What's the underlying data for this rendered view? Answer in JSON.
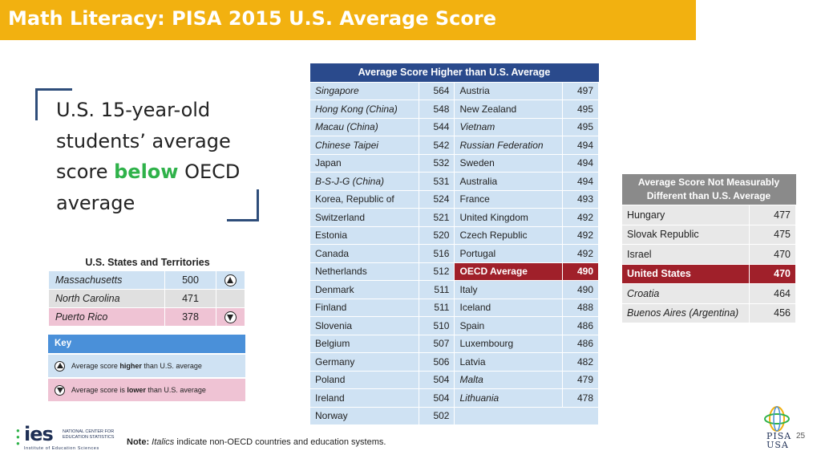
{
  "title": "Math Literacy: PISA 2015 U.S. Average Score",
  "intro": {
    "line1": "U.S. 15-year-old",
    "line2": "students’ average",
    "line3a": "score ",
    "line3b": "below",
    "line3c": " OECD",
    "line4": "average"
  },
  "higher_table": {
    "header": "Average Score Higher than U.S. Average",
    "left": [
      {
        "name": "Singapore",
        "score": "564",
        "italic": true
      },
      {
        "name": "Hong Kong (China)",
        "score": "548",
        "italic": true
      },
      {
        "name": "Macau (China)",
        "score": "544",
        "italic": true
      },
      {
        "name": "Chinese Taipei",
        "score": "542",
        "italic": true
      },
      {
        "name": "Japan",
        "score": "532",
        "italic": false
      },
      {
        "name": "B-S-J-G (China)",
        "score": "531",
        "italic": true
      },
      {
        "name": "Korea, Republic of",
        "score": "524",
        "italic": false
      },
      {
        "name": "Switzerland",
        "score": "521",
        "italic": false
      },
      {
        "name": "Estonia",
        "score": "520",
        "italic": false
      },
      {
        "name": "Canada",
        "score": "516",
        "italic": false
      },
      {
        "name": "Netherlands",
        "score": "512",
        "italic": false
      },
      {
        "name": "Denmark",
        "score": "511",
        "italic": false
      },
      {
        "name": "Finland",
        "score": "511",
        "italic": false
      },
      {
        "name": "Slovenia",
        "score": "510",
        "italic": false
      },
      {
        "name": "Belgium",
        "score": "507",
        "italic": false
      },
      {
        "name": "Germany",
        "score": "506",
        "italic": false
      },
      {
        "name": "Poland",
        "score": "504",
        "italic": false
      },
      {
        "name": "Ireland",
        "score": "504",
        "italic": false
      },
      {
        "name": "Norway",
        "score": "502",
        "italic": false
      }
    ],
    "right": [
      {
        "name": "Austria",
        "score": "497",
        "italic": false
      },
      {
        "name": "New Zealand",
        "score": "495",
        "italic": false
      },
      {
        "name": "Vietnam",
        "score": "495",
        "italic": true
      },
      {
        "name": "Russian Federation",
        "score": "494",
        "italic": true
      },
      {
        "name": "Sweden",
        "score": "494",
        "italic": false
      },
      {
        "name": "Australia",
        "score": "494",
        "italic": false
      },
      {
        "name": "France",
        "score": "493",
        "italic": false
      },
      {
        "name": "United Kingdom",
        "score": "492",
        "italic": false
      },
      {
        "name": "Czech Republic",
        "score": "492",
        "italic": false
      },
      {
        "name": "Portugal",
        "score": "492",
        "italic": false
      },
      {
        "name": "OECD Average",
        "score": "490",
        "italic": false,
        "highlight": true
      },
      {
        "name": "Italy",
        "score": "490",
        "italic": false
      },
      {
        "name": "Iceland",
        "score": "488",
        "italic": false
      },
      {
        "name": "Spain",
        "score": "486",
        "italic": false
      },
      {
        "name": "Luxembourg",
        "score": "486",
        "italic": false
      },
      {
        "name": "Latvia",
        "score": "482",
        "italic": false
      },
      {
        "name": "Malta",
        "score": "479",
        "italic": true
      },
      {
        "name": "Lithuania",
        "score": "478",
        "italic": true
      }
    ]
  },
  "not_different_table": {
    "header_line1": "Average Score Not Measurably",
    "header_line2": "Different than U.S. Average",
    "rows": [
      {
        "name": "Hungary",
        "score": "477",
        "italic": false
      },
      {
        "name": "Slovak Republic",
        "score": "475",
        "italic": false
      },
      {
        "name": "Israel",
        "score": "470",
        "italic": false
      },
      {
        "name": "United States",
        "score": "470",
        "italic": false,
        "highlight": true
      },
      {
        "name": "Croatia",
        "score": "464",
        "italic": true
      },
      {
        "name": "Buenos Aires (Argentina)",
        "score": "456",
        "italic": true
      }
    ]
  },
  "states": {
    "title": "U.S. States and Territories",
    "rows": [
      {
        "name": "Massachusetts",
        "score": "500",
        "icon": "up-triangle-icon",
        "color": "#cfe2f3"
      },
      {
        "name": "North Carolina",
        "score": "471",
        "icon": "",
        "color": "#e0e0e0"
      },
      {
        "name": "Puerto Rico",
        "score": "378",
        "icon": "down-triangle-icon",
        "color": "#efc3d4"
      }
    ]
  },
  "key": {
    "header": "Key",
    "higher_pre": "Average score ",
    "higher_bold": "higher",
    "higher_post": " than U.S. average",
    "lower_pre": "Average score is ",
    "lower_bold": "lower",
    "lower_post": " than U.S. average"
  },
  "footer": {
    "ies_word": "ies",
    "nces_line1": "NATIONAL CENTER FOR",
    "nces_line2": "EDUCATION STATISTICS",
    "ioes": "Institute of Education Sciences",
    "note_label": "Note:",
    "note_italic": "Italics",
    "note_rest": " indicate non-OECD countries and education systems.",
    "pisa_line1": "PISA",
    "pisa_line2": "USA",
    "page_number": "25"
  },
  "colors": {
    "title_bar": "#f2b110",
    "header_blue": "#2a4a8c",
    "cell_blue": "#cfe2f3",
    "highlight_red": "#a0202a",
    "grey_header": "#8a8a8a",
    "green_text": "#2fb24a"
  }
}
